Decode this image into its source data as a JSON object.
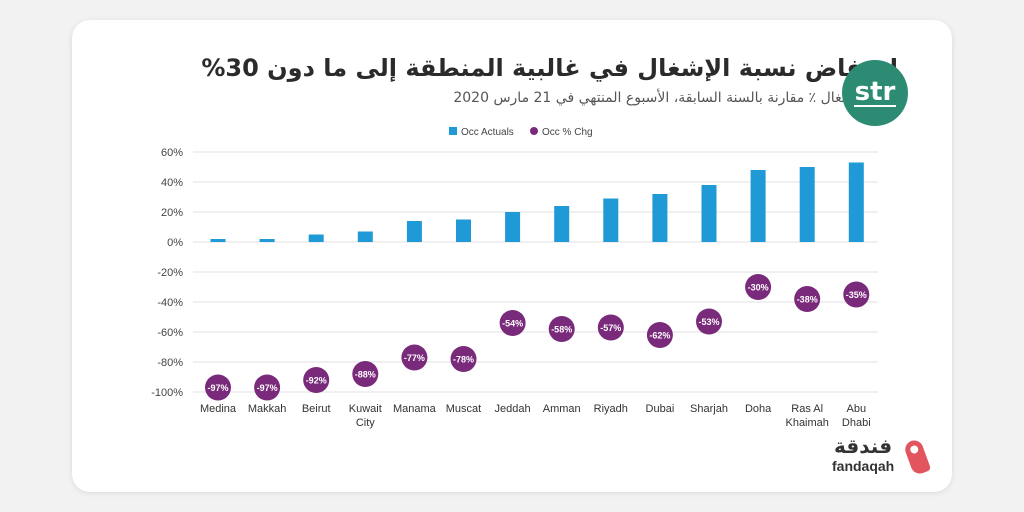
{
  "header": {
    "title": "انخفاض نسبة الإشغال في غالبية المنطقة إلى ما دون 30%",
    "subtitle": "نسبة الإشغال ٪ مقارنة بالسنة السابقة، الأسبوع المنتهي في 21 مارس 2020",
    "logo_text": "str"
  },
  "brand": {
    "arabic": "فندقة",
    "english": "fandaqah"
  },
  "colors": {
    "bar": "#1f9ad6",
    "dot": "#7a2a7a",
    "grid": "#e0e0e0",
    "logo": "#2e8b73"
  },
  "chart_data": {
    "type": "bar",
    "title": "",
    "xlabel": "",
    "ylabel": "",
    "ylim": [
      -100,
      60
    ],
    "yticks": [
      "60%",
      "40%",
      "20%",
      "0%",
      "-20%",
      "-40%",
      "-60%",
      "-80%",
      "-100%"
    ],
    "ytick_values": [
      60,
      40,
      20,
      0,
      -20,
      -40,
      -60,
      -80,
      -100
    ],
    "legend": {
      "position": "top-center",
      "entries": [
        "Occ Actuals",
        "Occ % Chg"
      ]
    },
    "categories": [
      [
        "Medina"
      ],
      [
        "Makkah"
      ],
      [
        "Beirut"
      ],
      [
        "Kuwait",
        "City"
      ],
      [
        "Manama"
      ],
      [
        "Muscat"
      ],
      [
        "Jeddah"
      ],
      [
        "Amman"
      ],
      [
        "Riyadh"
      ],
      [
        "Dubai"
      ],
      [
        "Sharjah"
      ],
      [
        "Doha"
      ],
      [
        "Ras Al",
        "Khaimah"
      ],
      [
        "Abu",
        "Dhabi"
      ]
    ],
    "series": [
      {
        "name": "Occ Actuals",
        "type": "bar",
        "values": [
          2,
          2,
          5,
          7,
          14,
          15,
          20,
          24,
          29,
          32,
          38,
          48,
          50,
          53
        ]
      },
      {
        "name": "Occ % Chg",
        "type": "scatter",
        "values": [
          -97,
          -97,
          -92,
          -88,
          -77,
          -78,
          -54,
          -58,
          -57,
          -62,
          -53,
          -30,
          -38,
          -35
        ],
        "labels": [
          "-97%",
          "-97%",
          "-92%",
          "-88%",
          "-77%",
          "-78%",
          "-54%",
          "-58%",
          "-57%",
          "-62%",
          "-53%",
          "-30%",
          "-38%",
          "-35%"
        ]
      }
    ]
  }
}
